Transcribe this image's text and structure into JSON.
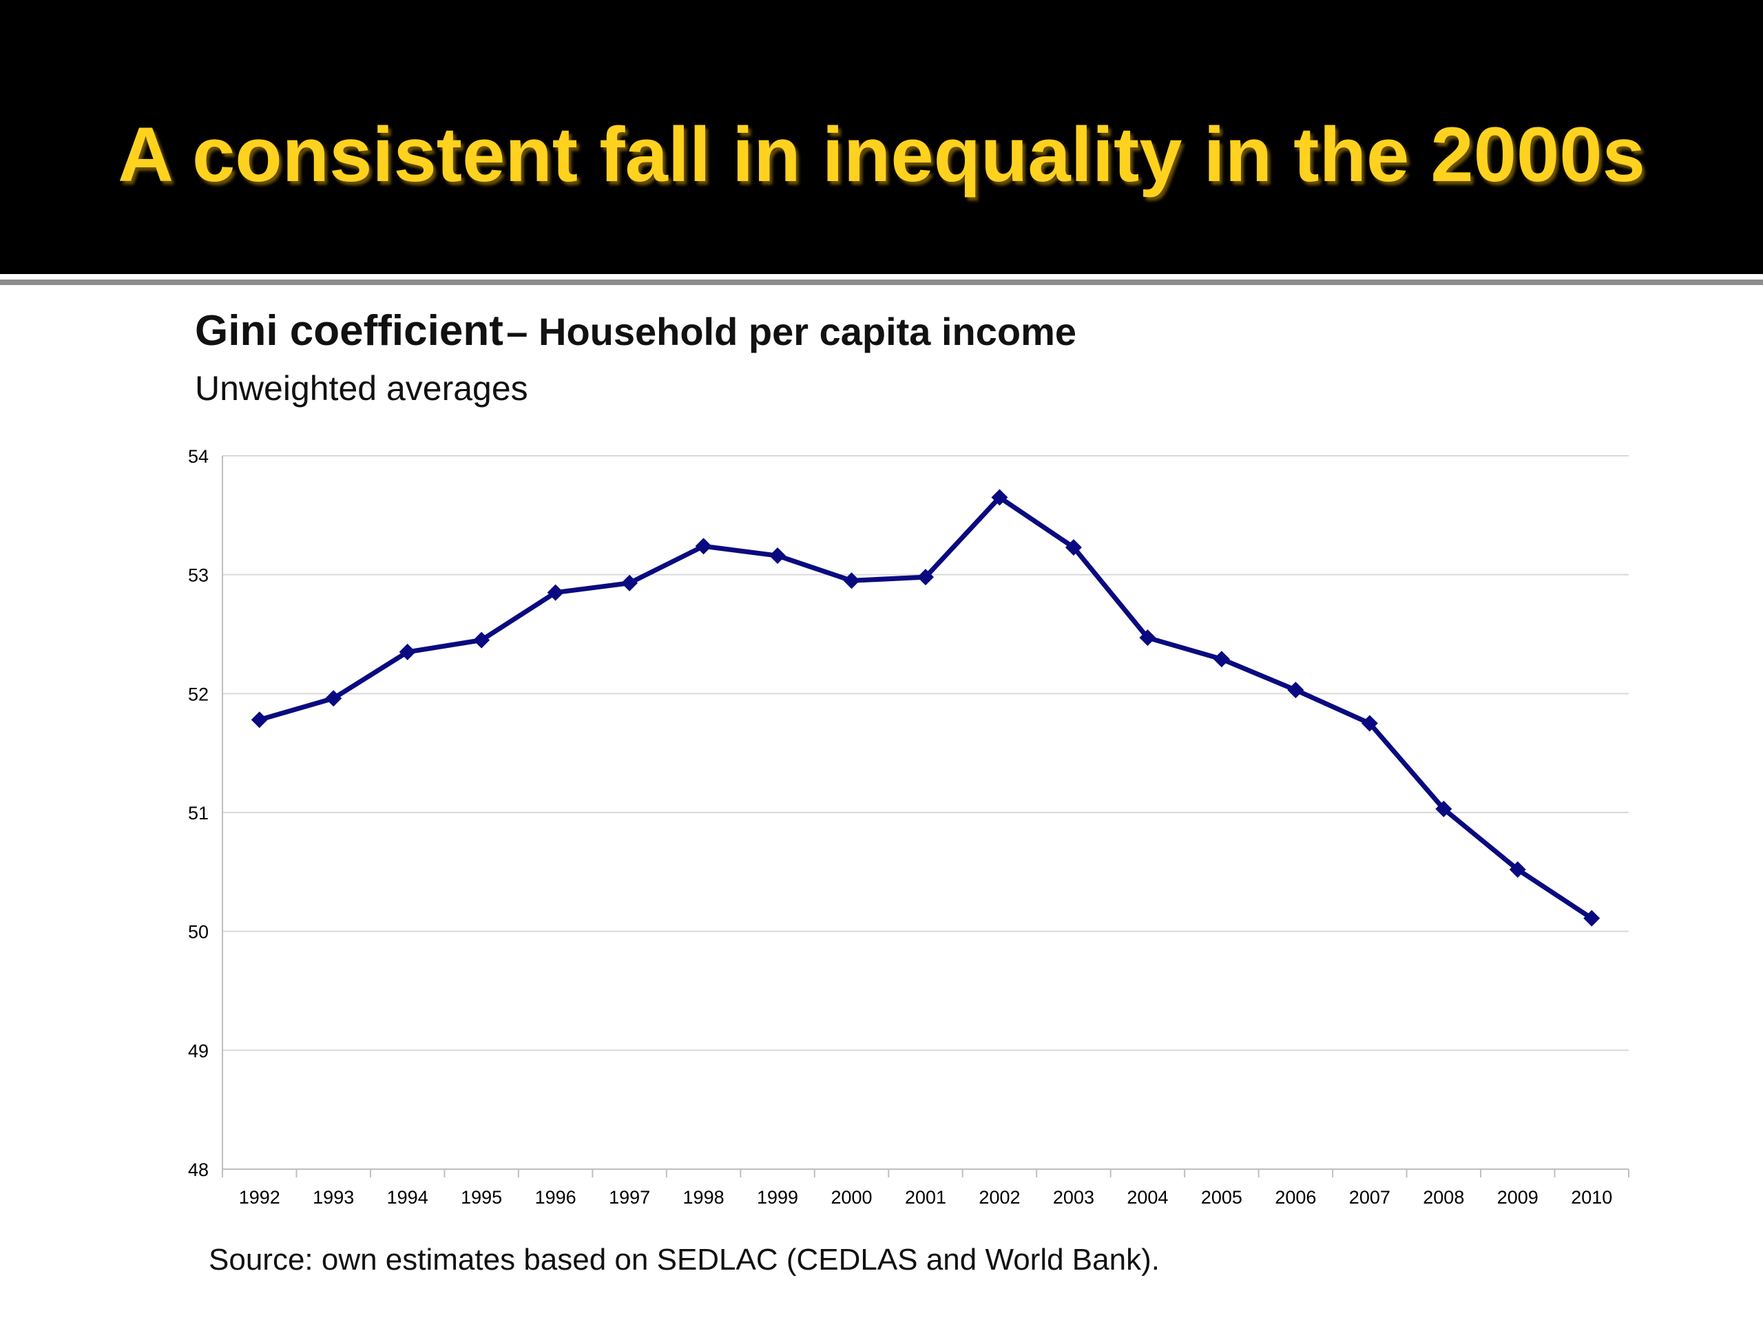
{
  "slide": {
    "title": "A consistent fall in inequality in the 2000s",
    "source": "Source: own estimates based on SEDLAC (CEDLAS and World Bank)."
  },
  "colors": {
    "banner": "#000000",
    "title_text": "#ffd21f",
    "series_line": "#0a0a80",
    "gridline": "#d9d9d9"
  },
  "chart_data": {
    "type": "line",
    "title": "Gini coefficient",
    "title_suffix": "– Household per capita income",
    "subtitle": "Unweighted averages",
    "xlabel": "",
    "ylabel": "",
    "ylim": [
      48,
      54
    ],
    "yticks": [
      48,
      49,
      50,
      51,
      52,
      53,
      54
    ],
    "grid": true,
    "legend": "none",
    "categories": [
      "1992",
      "1993",
      "1994",
      "1995",
      "1996",
      "1997",
      "1998",
      "1999",
      "2000",
      "2001",
      "2002",
      "2003",
      "2004",
      "2005",
      "2006",
      "2007",
      "2008",
      "2009",
      "2010"
    ],
    "series": [
      {
        "marker": "diamond",
        "values": [
          51.78,
          51.96,
          52.35,
          52.45,
          52.85,
          52.93,
          53.24,
          53.16,
          52.95,
          52.98,
          53.65,
          53.23,
          52.47,
          52.29,
          52.03,
          51.75,
          51.03,
          50.52,
          50.11
        ]
      }
    ]
  }
}
